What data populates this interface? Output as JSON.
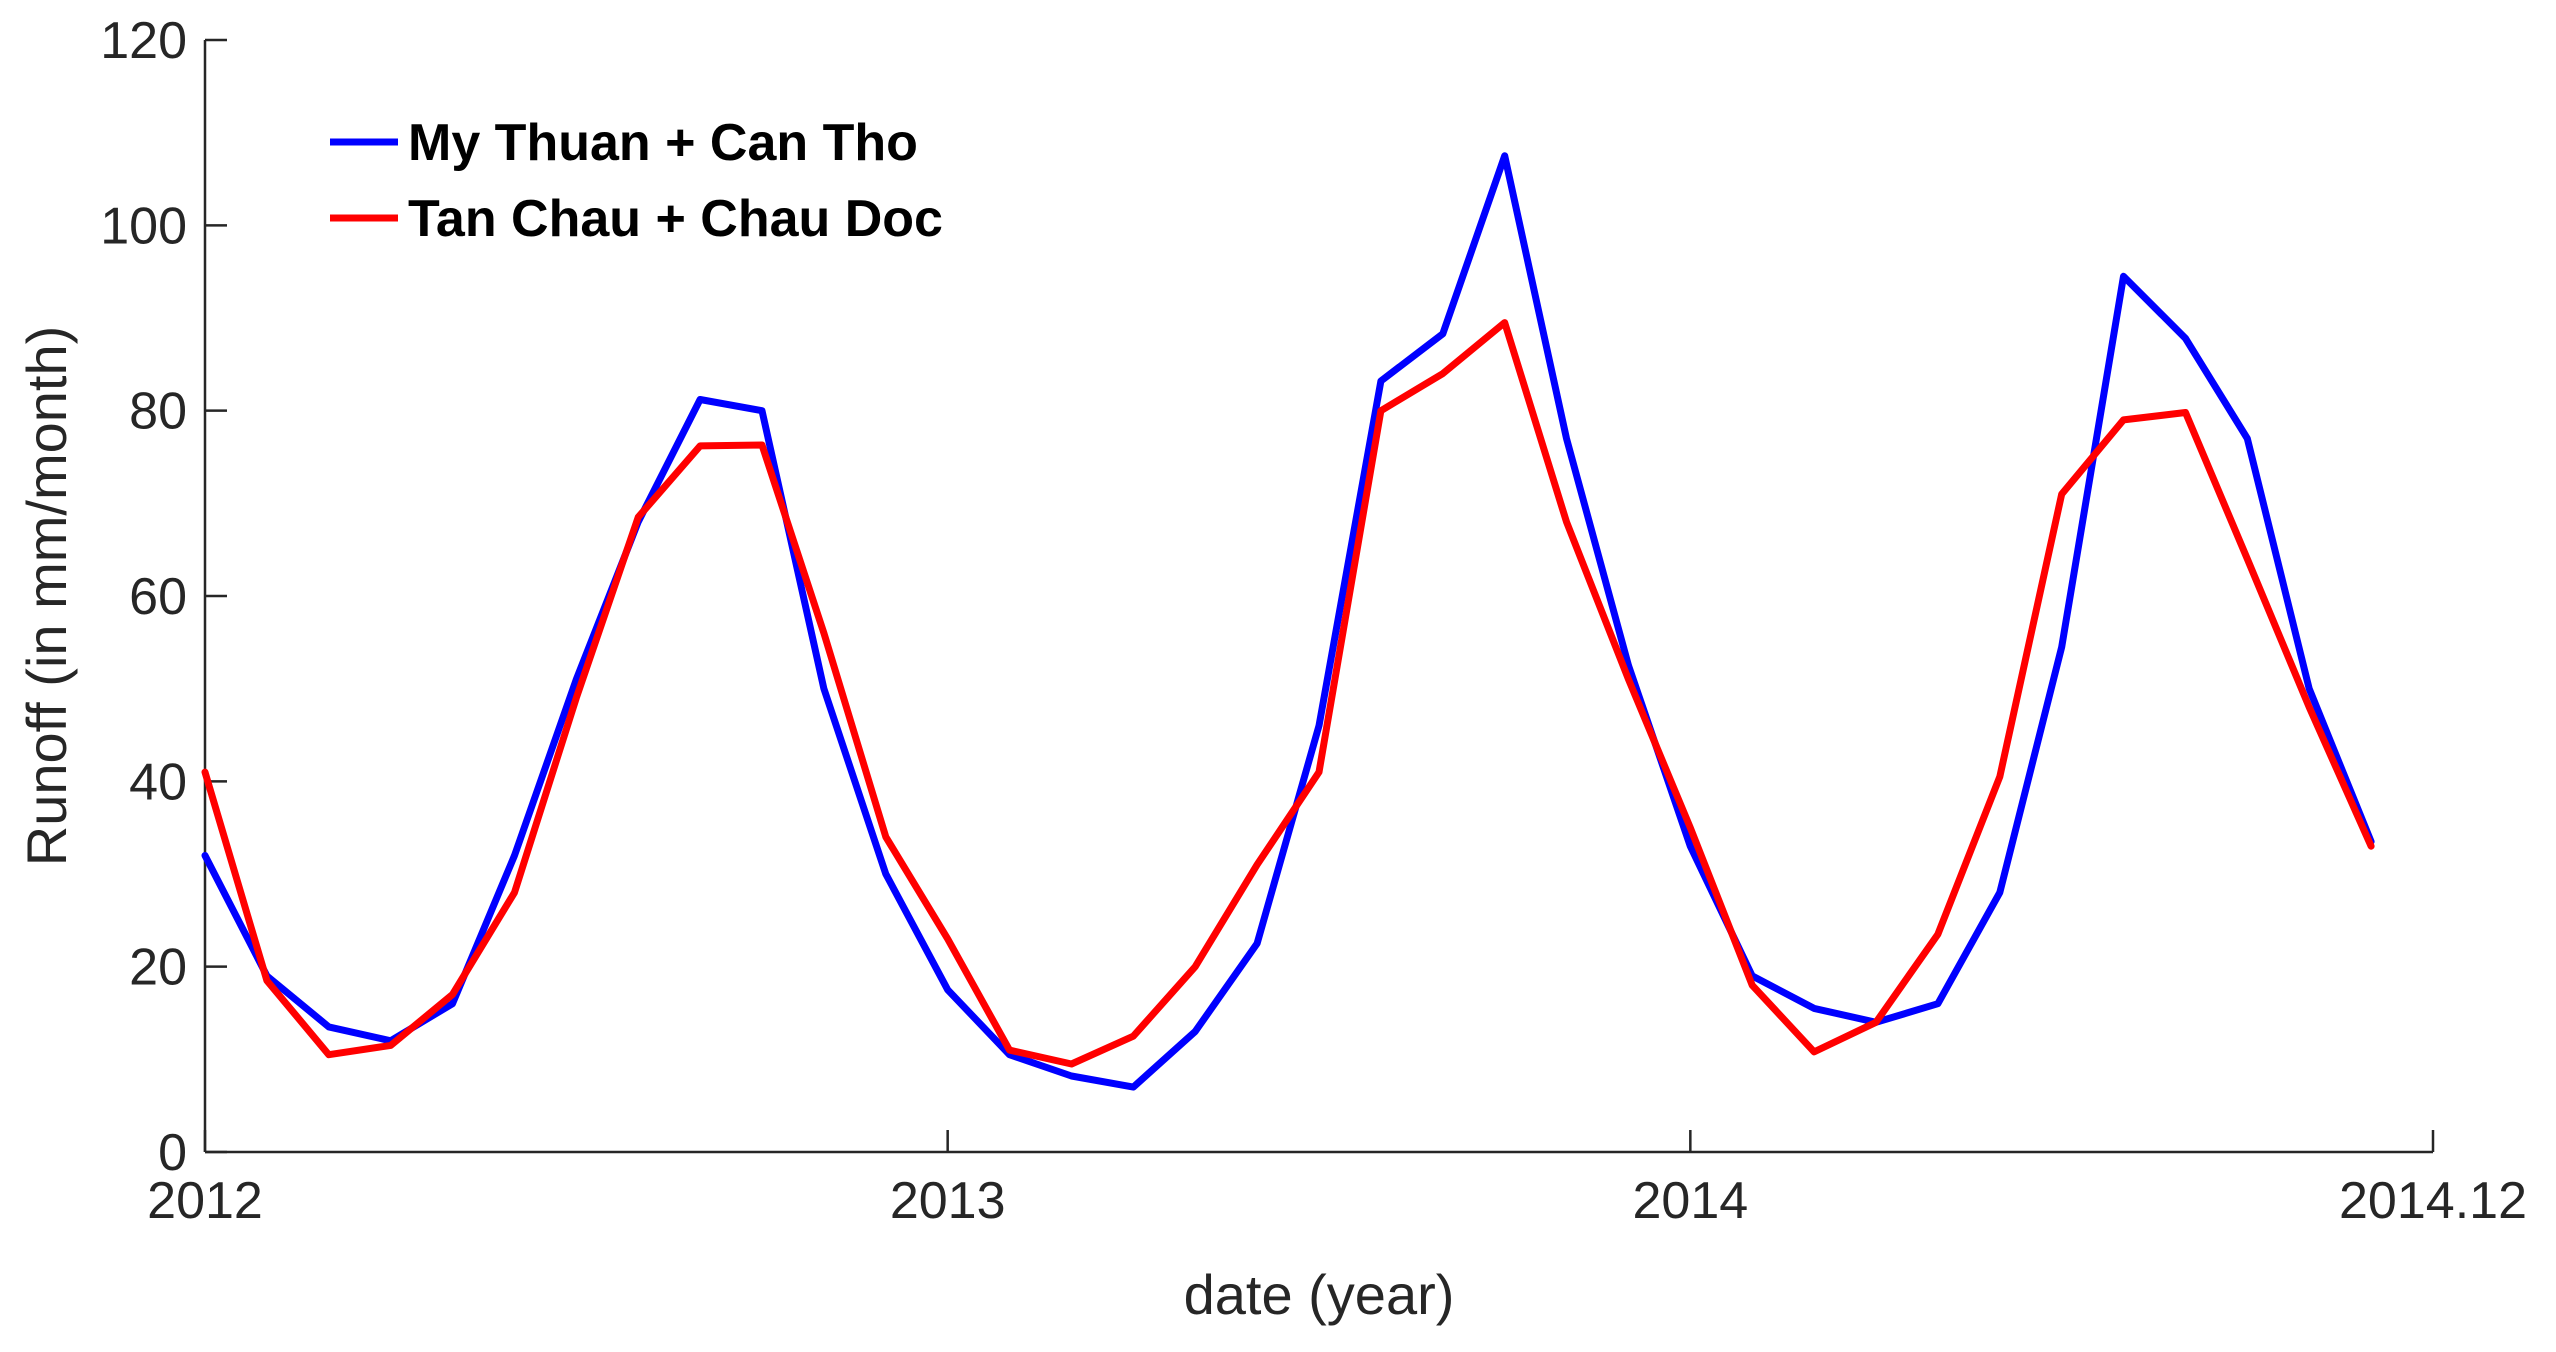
{
  "chart_data": {
    "type": "line",
    "title": "",
    "xlabel": "date (year)",
    "ylabel": "Runoff (in mm/month)",
    "xlim": [
      2012.0,
      2015.0
    ],
    "ylim": [
      0,
      120
    ],
    "x_ticks": [
      {
        "value": 2012.0,
        "label": "2012"
      },
      {
        "value": 2013.0,
        "label": "2013"
      },
      {
        "value": 2014.0,
        "label": "2014"
      },
      {
        "value": 2015.0,
        "label": "2014.12"
      }
    ],
    "y_ticks": [
      {
        "value": 0,
        "label": "0"
      },
      {
        "value": 20,
        "label": "20"
      },
      {
        "value": 40,
        "label": "40"
      },
      {
        "value": 60,
        "label": "60"
      },
      {
        "value": 80,
        "label": "80"
      },
      {
        "value": 100,
        "label": "100"
      },
      {
        "value": 120,
        "label": "120"
      }
    ],
    "grid": false,
    "legend_position": "top-left",
    "x": [
      "2012-01",
      "2012-02",
      "2012-03",
      "2012-04",
      "2012-05",
      "2012-06",
      "2012-07",
      "2012-08",
      "2012-09",
      "2012-10",
      "2012-11",
      "2012-12",
      "2013-01",
      "2013-02",
      "2013-03",
      "2013-04",
      "2013-05",
      "2013-06",
      "2013-07",
      "2013-08",
      "2013-09",
      "2013-10",
      "2013-11",
      "2013-12",
      "2014-01",
      "2014-02",
      "2014-03",
      "2014-04",
      "2014-05",
      "2014-06",
      "2014-07",
      "2014-08",
      "2014-09",
      "2014-10",
      "2014-11",
      "2014-12"
    ],
    "x_numeric": [
      2012.0,
      2012.0833,
      2012.1667,
      2012.25,
      2012.3333,
      2012.4167,
      2012.5,
      2012.5833,
      2012.6667,
      2012.75,
      2012.8333,
      2012.9167,
      2013.0,
      2013.0833,
      2013.1667,
      2013.25,
      2013.3333,
      2013.4167,
      2013.5,
      2013.5833,
      2013.6667,
      2013.75,
      2013.8333,
      2013.9167,
      2014.0,
      2014.0833,
      2014.1667,
      2014.25,
      2014.3333,
      2014.4167,
      2014.5,
      2014.5833,
      2014.6667,
      2014.75,
      2014.8333,
      2014.9167
    ],
    "series": [
      {
        "name": "My Thuan + Can Tho",
        "color": "#0000ff",
        "values": [
          32,
          19,
          13.5,
          12,
          16,
          32,
          51,
          68,
          81.2,
          80,
          50,
          30,
          17.5,
          10.5,
          8.2,
          7,
          13,
          22.5,
          46,
          83.2,
          88.3,
          107.5,
          77,
          52.5,
          33,
          19,
          15.5,
          14,
          16,
          28,
          54.5,
          94.5,
          87.8,
          77,
          50,
          33.5
        ]
      },
      {
        "name": "Tan Chau + Chau Doc",
        "color": "#ff0000",
        "values": [
          41,
          18.5,
          10.5,
          11.5,
          17,
          28,
          49,
          68.5,
          76.2,
          76.3,
          56,
          34,
          23,
          11,
          9.5,
          12.5,
          20,
          31,
          41,
          80,
          84,
          89.5,
          68,
          51,
          35,
          18,
          10.8,
          14,
          23.5,
          40.5,
          71,
          79,
          79.8,
          64,
          48,
          33
        ]
      }
    ]
  }
}
